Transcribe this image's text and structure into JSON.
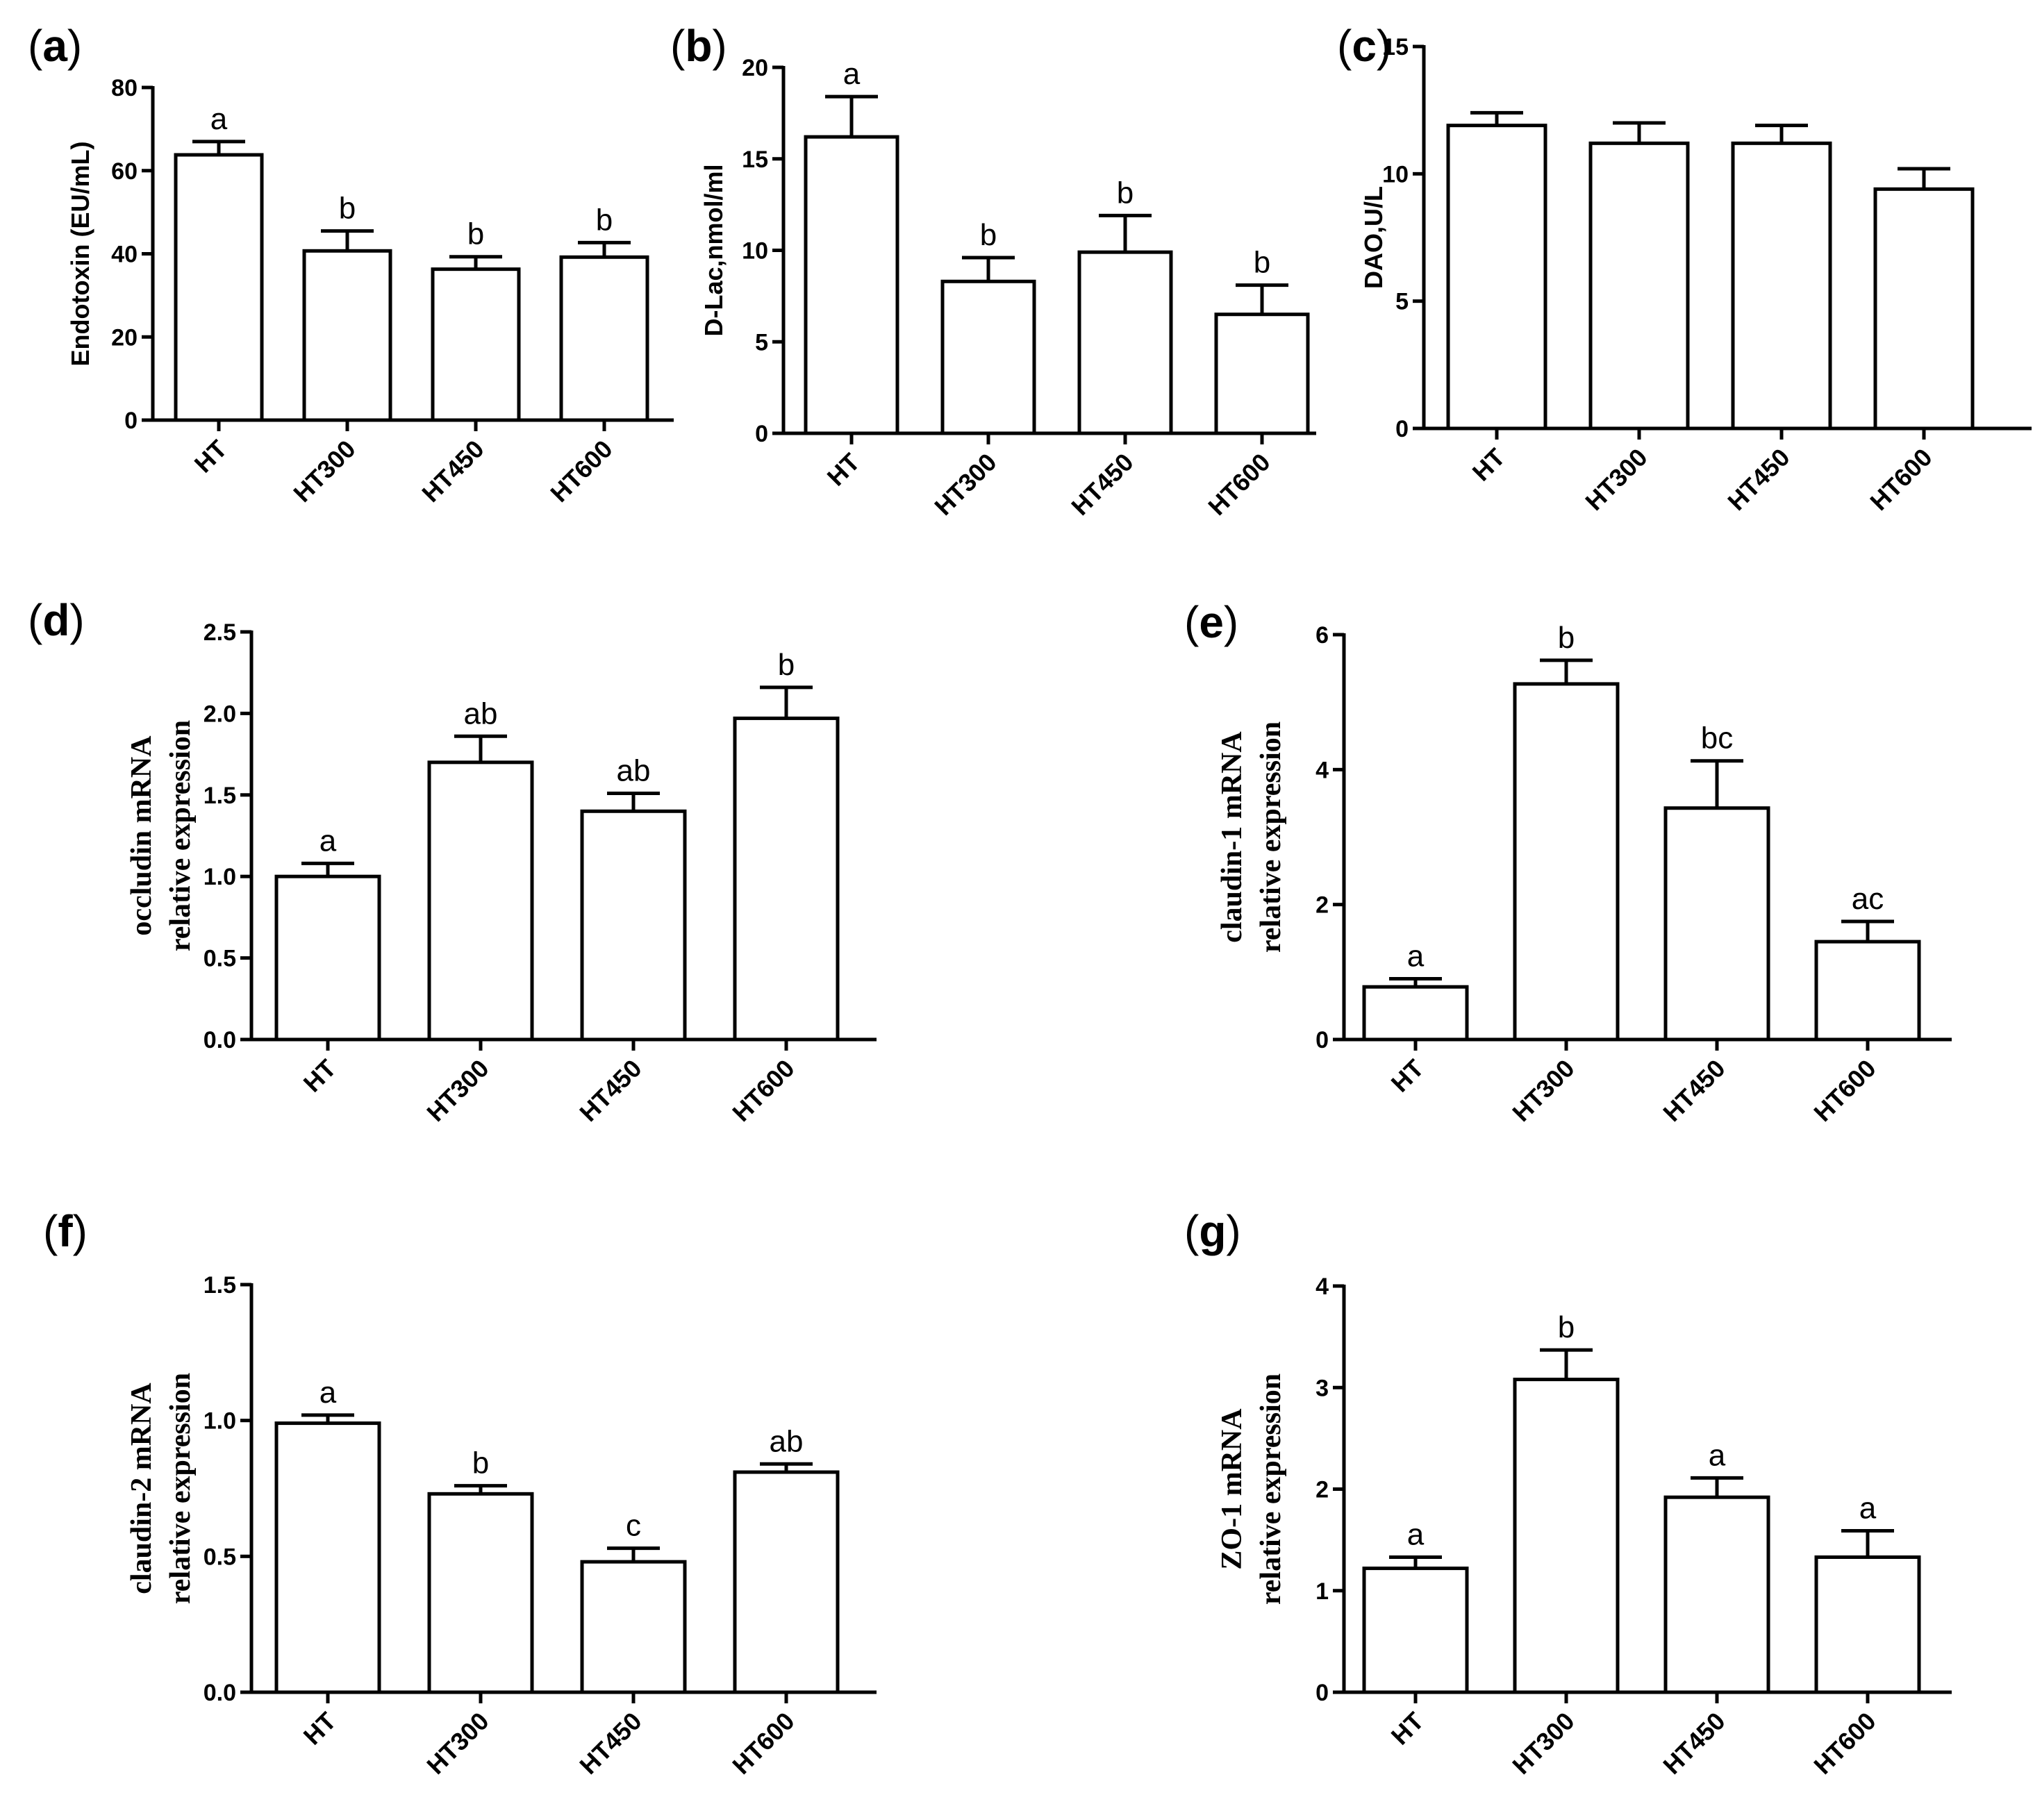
{
  "chart_data": [
    {
      "id": "a",
      "type": "bar",
      "panel_label": "a",
      "ylabel": [
        "Endotoxin (EU/mL)"
      ],
      "categories": [
        "HT",
        "HT300",
        "HT450",
        "HT600"
      ],
      "values": [
        63.8,
        40.7,
        36.3,
        39.2
      ],
      "errors": [
        3.2,
        4.8,
        3.0,
        3.5
      ],
      "significance": [
        "a",
        "b",
        "b",
        "b"
      ],
      "ylim": [
        0,
        80
      ],
      "yticks": [
        0,
        20,
        40,
        60,
        80
      ],
      "ytick_labels": [
        "0",
        "20",
        "40",
        "60",
        "80"
      ]
    },
    {
      "id": "b",
      "type": "bar",
      "panel_label": "b",
      "ylabel": [
        "D-Lac,nmol/ml"
      ],
      "categories": [
        "HT",
        "HT300",
        "HT450",
        "HT600"
      ],
      "values": [
        16.2,
        8.3,
        9.9,
        6.5
      ],
      "errors": [
        2.2,
        1.3,
        2.0,
        1.6
      ],
      "significance": [
        "a",
        "b",
        "b",
        "b"
      ],
      "ylim": [
        0,
        20
      ],
      "yticks": [
        0,
        5,
        10,
        15,
        20
      ],
      "ytick_labels": [
        "0",
        "5",
        "10",
        "15",
        "20"
      ]
    },
    {
      "id": "c",
      "type": "bar",
      "panel_label": "c",
      "ylabel": [
        "DAO,U/L"
      ],
      "categories": [
        "HT",
        "HT300",
        "HT450",
        "HT600"
      ],
      "values": [
        11.9,
        11.2,
        11.2,
        9.4
      ],
      "errors": [
        0.5,
        0.8,
        0.7,
        0.8
      ],
      "significance": [
        "",
        "",
        "",
        ""
      ],
      "ylim": [
        0,
        15
      ],
      "yticks": [
        0,
        5,
        10,
        15
      ],
      "ytick_labels": [
        "0",
        "5",
        "10",
        "15"
      ]
    },
    {
      "id": "d",
      "type": "bar",
      "panel_label": "d",
      "ylabel": [
        "occludin mRNA",
        "relative expression"
      ],
      "categories": [
        "HT",
        "HT300",
        "HT450",
        "HT600"
      ],
      "values": [
        1.0,
        1.7,
        1.4,
        1.97
      ],
      "errors": [
        0.08,
        0.16,
        0.11,
        0.19
      ],
      "significance": [
        "a",
        "ab",
        "ab",
        "b"
      ],
      "ylim": [
        0,
        2.5
      ],
      "yticks": [
        0,
        0.5,
        1.0,
        1.5,
        2.0,
        2.5
      ],
      "ytick_labels": [
        "0.0",
        "0.5",
        "1.0",
        "1.5",
        "2.0",
        "2.5"
      ]
    },
    {
      "id": "e",
      "type": "bar",
      "panel_label": "e",
      "ylabel": [
        "claudin-1 mRNA",
        "relative expression"
      ],
      "categories": [
        "HT",
        "HT300",
        "HT450",
        "HT600"
      ],
      "values": [
        0.78,
        5.27,
        3.43,
        1.45
      ],
      "errors": [
        0.12,
        0.35,
        0.7,
        0.3
      ],
      "significance": [
        "a",
        "b",
        "bc",
        "ac"
      ],
      "ylim": [
        0,
        6
      ],
      "yticks": [
        0,
        2,
        4,
        6
      ],
      "ytick_labels": [
        "0",
        "2",
        "4",
        "6"
      ]
    },
    {
      "id": "f",
      "type": "bar",
      "panel_label": "f",
      "ylabel": [
        "claudin-2 mRNA",
        "relative expression"
      ],
      "categories": [
        "HT",
        "HT300",
        "HT450",
        "HT600"
      ],
      "values": [
        0.99,
        0.73,
        0.48,
        0.81
      ],
      "errors": [
        0.03,
        0.03,
        0.05,
        0.03
      ],
      "significance": [
        "a",
        "b",
        "c",
        "ab"
      ],
      "ylim": [
        0,
        1.5
      ],
      "yticks": [
        0,
        0.5,
        1.0,
        1.5
      ],
      "ytick_labels": [
        "0.0",
        "0.5",
        "1.0",
        "1.5"
      ]
    },
    {
      "id": "g",
      "type": "bar",
      "panel_label": "g",
      "ylabel": [
        "ZO-1 mRNA",
        "relative expression"
      ],
      "categories": [
        "HT",
        "HT300",
        "HT450",
        "HT600"
      ],
      "values": [
        1.22,
        3.08,
        1.92,
        1.33
      ],
      "errors": [
        0.11,
        0.29,
        0.19,
        0.26
      ],
      "significance": [
        "a",
        "b",
        "a",
        "a"
      ],
      "ylim": [
        0,
        4
      ],
      "yticks": [
        0,
        1,
        2,
        3,
        4
      ],
      "ytick_labels": [
        "0",
        "1",
        "2",
        "3",
        "4"
      ]
    }
  ]
}
